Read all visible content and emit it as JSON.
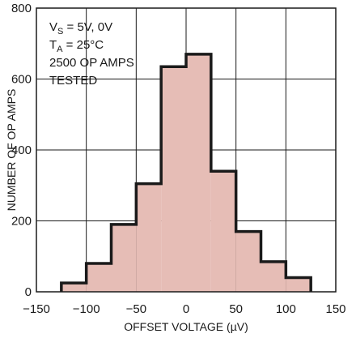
{
  "chart_data": {
    "type": "bar",
    "title": "",
    "xlabel": "OFFSET VOLTAGE (µV)",
    "ylabel": "NUMBER OF OP AMPS",
    "xlim": [
      -150,
      150
    ],
    "ylim": [
      0,
      800
    ],
    "x_ticks": [
      -150,
      -100,
      -50,
      0,
      50,
      100,
      150
    ],
    "y_ticks": [
      0,
      200,
      400,
      600,
      800
    ],
    "grid": true,
    "bin_edges": [
      -125,
      -100,
      -75,
      -50,
      -25,
      0,
      25,
      50,
      75,
      100,
      125
    ],
    "values": [
      25,
      80,
      190,
      305,
      635,
      670,
      340,
      170,
      85,
      40
    ],
    "fill_color": "#e6bdb6",
    "edge_color": "#1a1a1a",
    "annotations": [
      {
        "id": "vs",
        "main": "V",
        "sub": "S",
        "rest": " = 5V, 0V"
      },
      {
        "id": "ta",
        "main": "T",
        "sub": "A",
        "rest": " = 25°C"
      },
      {
        "id": "count",
        "main": "2500 OP AMPS"
      },
      {
        "id": "tested",
        "main": "TESTED"
      }
    ]
  }
}
